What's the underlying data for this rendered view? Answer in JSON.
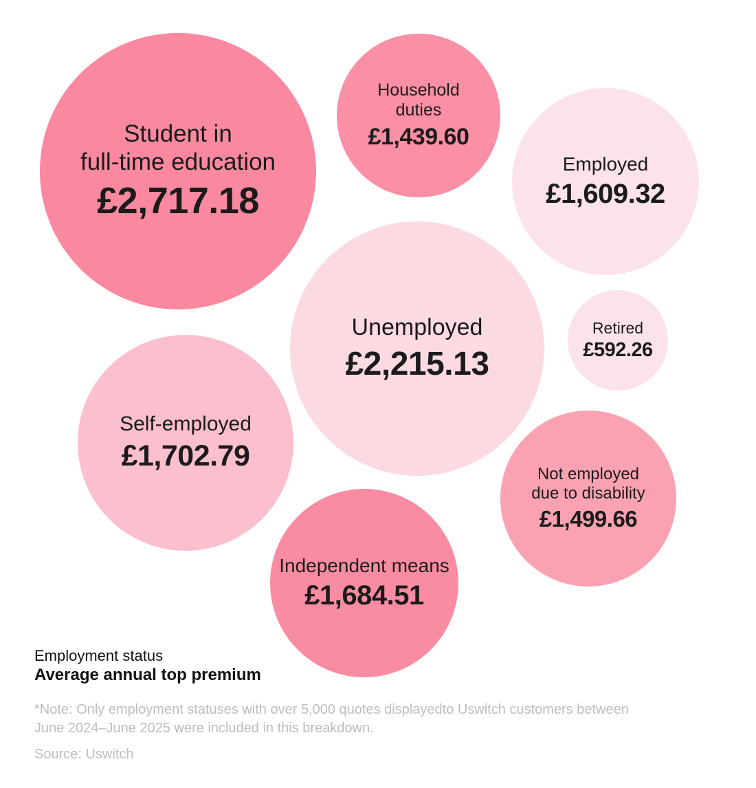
{
  "chart_data": {
    "type": "bubble",
    "title": "",
    "category_label": "Employment status",
    "value_label": "Average annual top premium",
    "unit": "£ (GBP)",
    "bubbles": [
      {
        "category": "Student in full-time education",
        "label_line1": "Student in",
        "label_line2": "full-time education",
        "value": 2717.18,
        "value_display": "£2,717.18",
        "color": "#FA89A0"
      },
      {
        "category": "Household duties",
        "label_line1": "Household",
        "label_line2": "duties",
        "value": 1439.6,
        "value_display": "£1,439.60",
        "color": "#FA8FA5"
      },
      {
        "category": "Employed",
        "label_line1": "Employed",
        "value": 1609.32,
        "value_display": "£1,609.32",
        "color": "#FCE3EA"
      },
      {
        "category": "Unemployed",
        "label_line1": "Unemployed",
        "value": 2215.13,
        "value_display": "£2,215.13",
        "color": "#FBDAE2"
      },
      {
        "category": "Retired",
        "label_line1": "Retired",
        "value": 592.26,
        "value_display": "£592.26",
        "color": "#FCE3EA"
      },
      {
        "category": "Self-employed",
        "label_line1": "Self-employed",
        "value": 1702.79,
        "value_display": "£1,702.79",
        "color": "#FCBFCD"
      },
      {
        "category": "Not employed due to disability",
        "label_line1": "Not employed",
        "label_line2": "due to disability",
        "value": 1499.66,
        "value_display": "£1,499.66",
        "color": "#FBA2B2"
      },
      {
        "category": "Independent means",
        "label_line1": "Independent means",
        "value": 1684.51,
        "value_display": "£1,684.51",
        "color": "#FA8CA2"
      }
    ]
  },
  "footer": {
    "category_label": "Employment status",
    "metric_label": "Average annual top premium",
    "note_line1": "*Note: Only employment statuses with over 5,000 quotes displayedto Uswitch customers between",
    "note_line2": "June 2024–June 2025 were included in this breakdown.",
    "source": "Source: Uswitch"
  },
  "colors": {
    "dark_pink": "#FA89A0",
    "medium_pink": "#FBA2B2",
    "soft_pink": "#FCBFCD",
    "pale_pink": "#FBDAE2",
    "lightest_pink": "#FCE3EA",
    "text": "#1b1b1b",
    "muted_text": "#bdbdbd",
    "background": "#ffffff"
  }
}
